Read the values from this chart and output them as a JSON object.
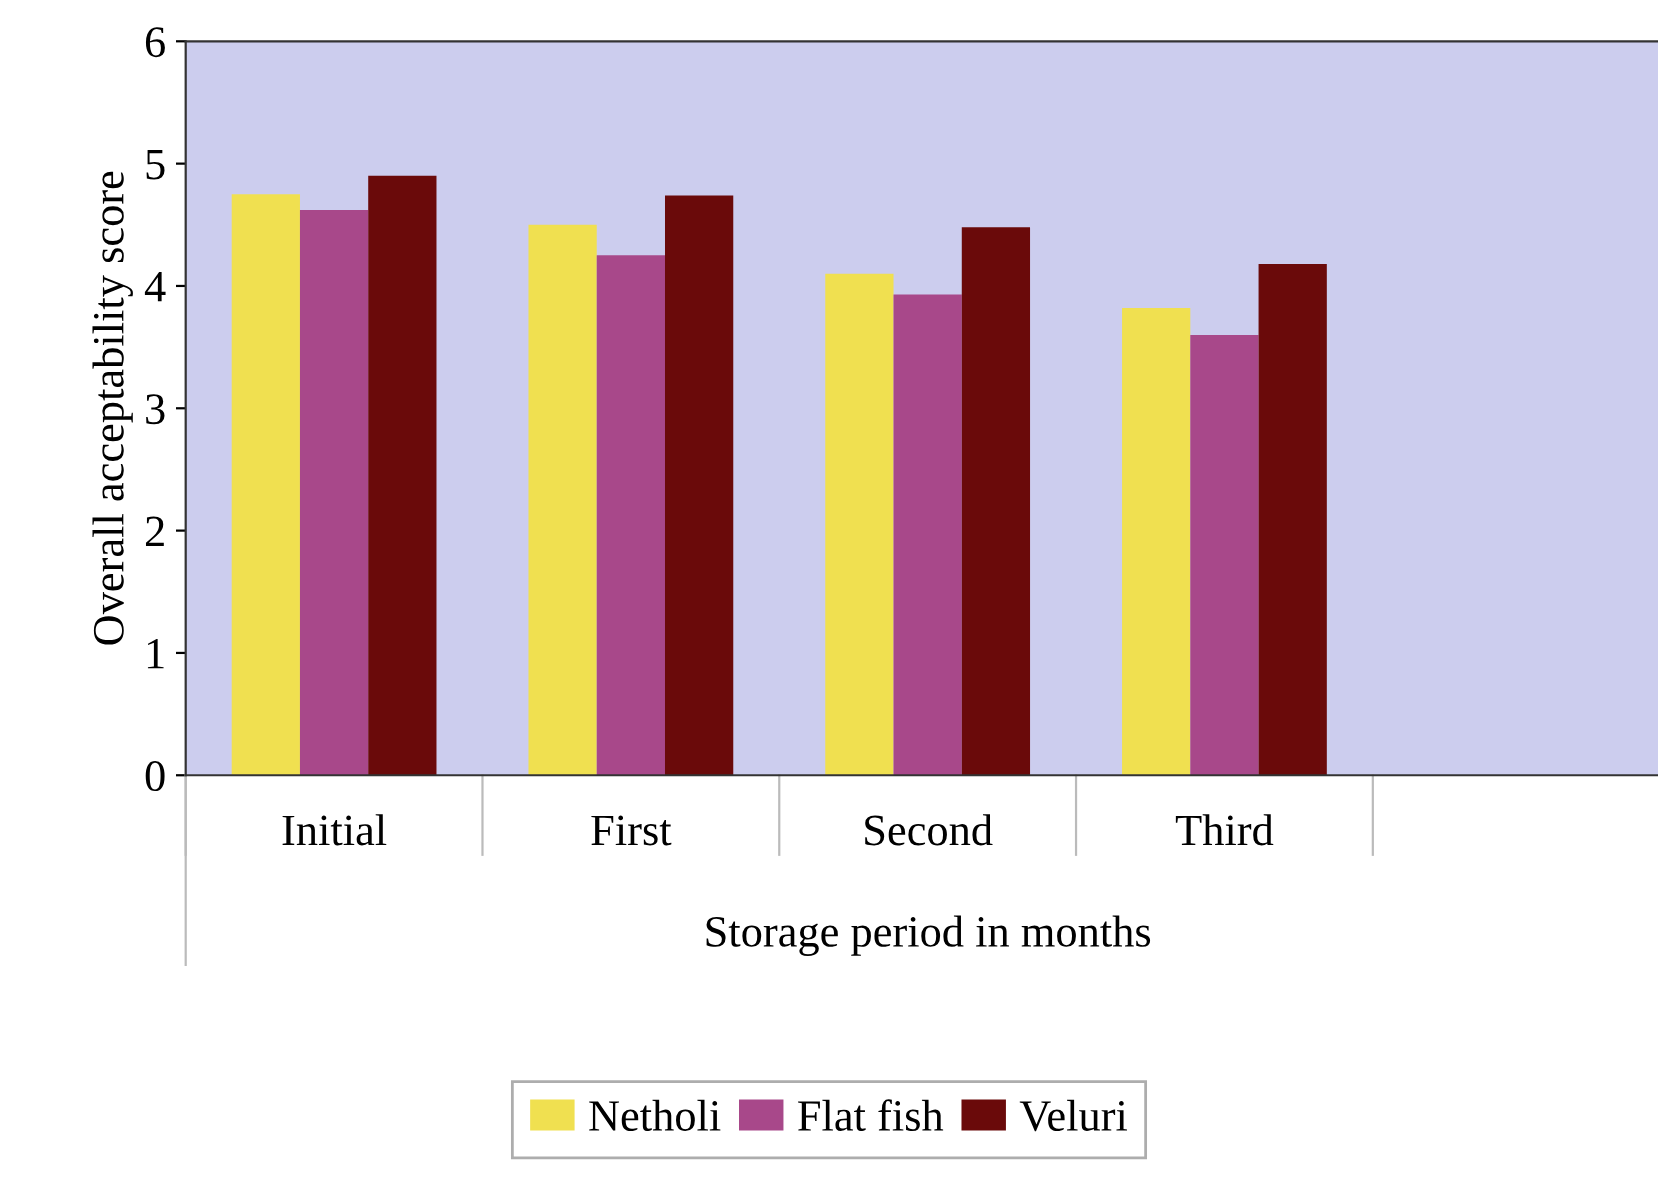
{
  "chart_data": {
    "type": "bar",
    "xlabel": "Storage period in months",
    "ylabel": "Overall acceptability score",
    "categories": [
      "Initial",
      "First",
      "Second",
      "Third",
      null
    ],
    "series": [
      {
        "name": "Netholi",
        "color": "#f0e050",
        "values": [
          4.75,
          4.5,
          4.1,
          3.82,
          null
        ]
      },
      {
        "name": "Flat fish",
        "color": "#a8488a",
        "values": [
          4.62,
          4.25,
          3.93,
          3.6,
          null
        ]
      },
      {
        "name": "Veluri",
        "color": "#6a0a0a",
        "values": [
          4.9,
          4.74,
          4.48,
          4.18,
          null
        ]
      }
    ],
    "ylim": [
      0,
      6
    ],
    "yticks": [
      0,
      1,
      2,
      3,
      4,
      5,
      6
    ],
    "grid": false,
    "legend": "bottom"
  }
}
